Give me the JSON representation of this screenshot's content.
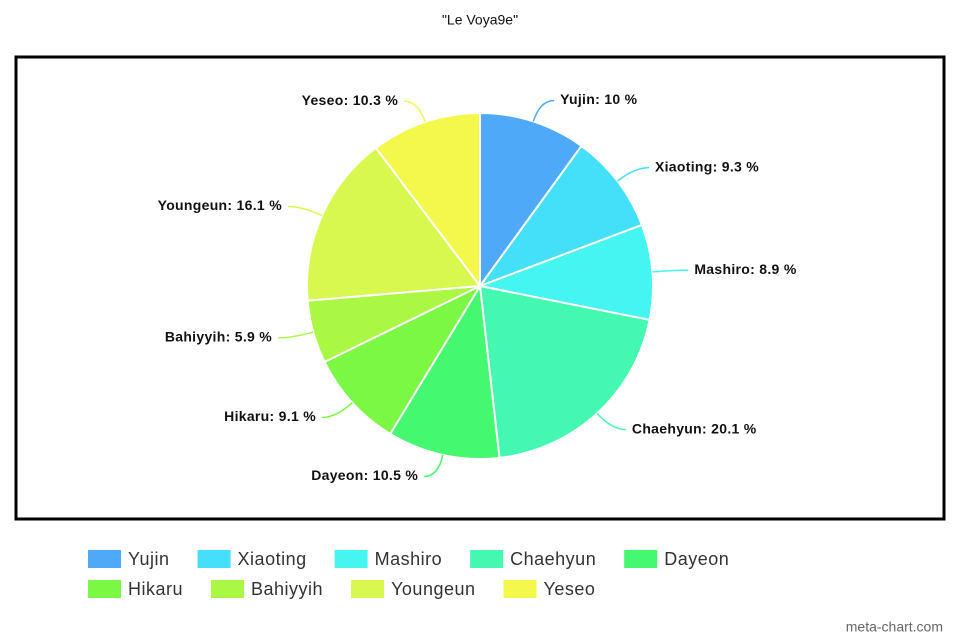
{
  "chart_data": {
    "type": "pie",
    "title": "\"Le Voya9e\"",
    "categories": [
      "Yujin",
      "Xiaoting",
      "Mashiro",
      "Chaehyun",
      "Dayeon",
      "Hikaru",
      "Bahiyyih",
      "Youngeun",
      "Yeseo"
    ],
    "values": [
      10,
      9.3,
      8.9,
      20.1,
      10.5,
      9.1,
      5.9,
      16.1,
      10.3
    ],
    "value_labels": [
      "Yujin: 10 %",
      "Xiaoting: 9.3 %",
      "Mashiro: 8.9 %",
      "Chaehyun: 20.1 %",
      "Dayeon: 10.5 %",
      "Hikaru: 9.1 %",
      "Bahiyyih: 5.9 %",
      "Youngeun: 16.1 %",
      "Yeseo: 10.3 %"
    ],
    "colors": [
      "#4eaaf8",
      "#44dff8",
      "#44f5f2",
      "#44f8b2",
      "#44f870",
      "#7af844",
      "#aaf844",
      "#d8f850",
      "#f4f84a"
    ],
    "watermark": "meta-chart.com"
  }
}
